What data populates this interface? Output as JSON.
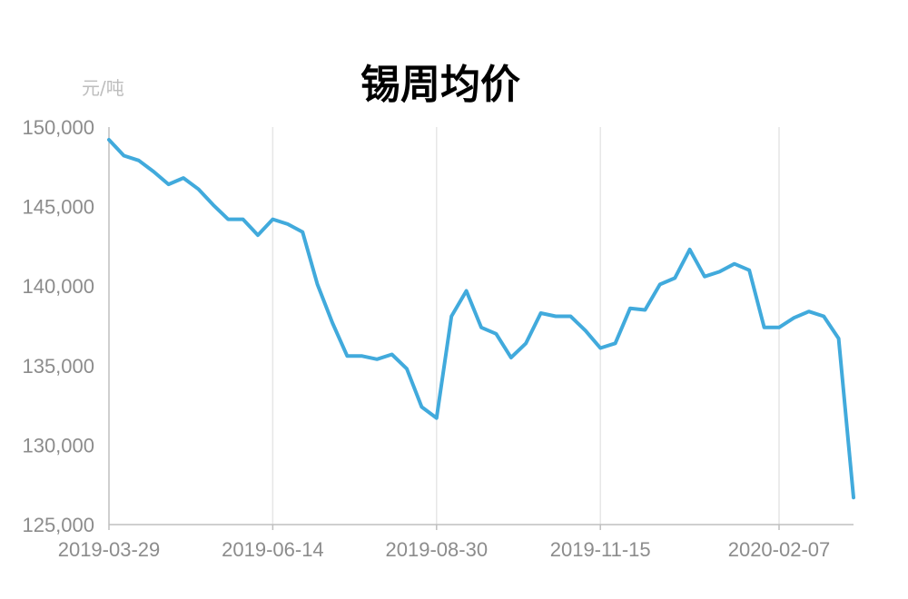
{
  "chart_data": {
    "type": "line",
    "title": "锡周均价",
    "ylabel": "元/吨",
    "ylim": [
      125000,
      150000
    ],
    "yticks": [
      150000,
      145000,
      140000,
      135000,
      130000,
      125000
    ],
    "ytick_labels": [
      "150,000",
      "145,000",
      "140,000",
      "135,000",
      "130,000",
      "125,000"
    ],
    "xtick_labels": [
      "2019-03-29",
      "2019-06-14",
      "2019-08-30",
      "2019-11-15",
      "2020-02-07"
    ],
    "xtick_index": [
      0,
      11,
      22,
      33,
      45
    ],
    "grid": "vertical",
    "series_color": "#41aadc",
    "series": [
      {
        "values": [
          149200,
          148200,
          147900,
          147200,
          146400,
          146800,
          146100,
          145100,
          144200,
          144200,
          143200,
          144200,
          143900,
          143400,
          140100,
          137700,
          135600,
          135600,
          135400,
          135700,
          134800,
          132400,
          131700,
          138100,
          139700,
          137400,
          137000,
          135500,
          136400,
          138300,
          138100,
          138100,
          137200,
          136100,
          136400,
          138600,
          138500,
          140100,
          140500,
          142300,
          140600,
          140900,
          141400,
          141000,
          137400,
          137400,
          138000,
          138400,
          138100,
          136700,
          126700
        ]
      }
    ]
  }
}
